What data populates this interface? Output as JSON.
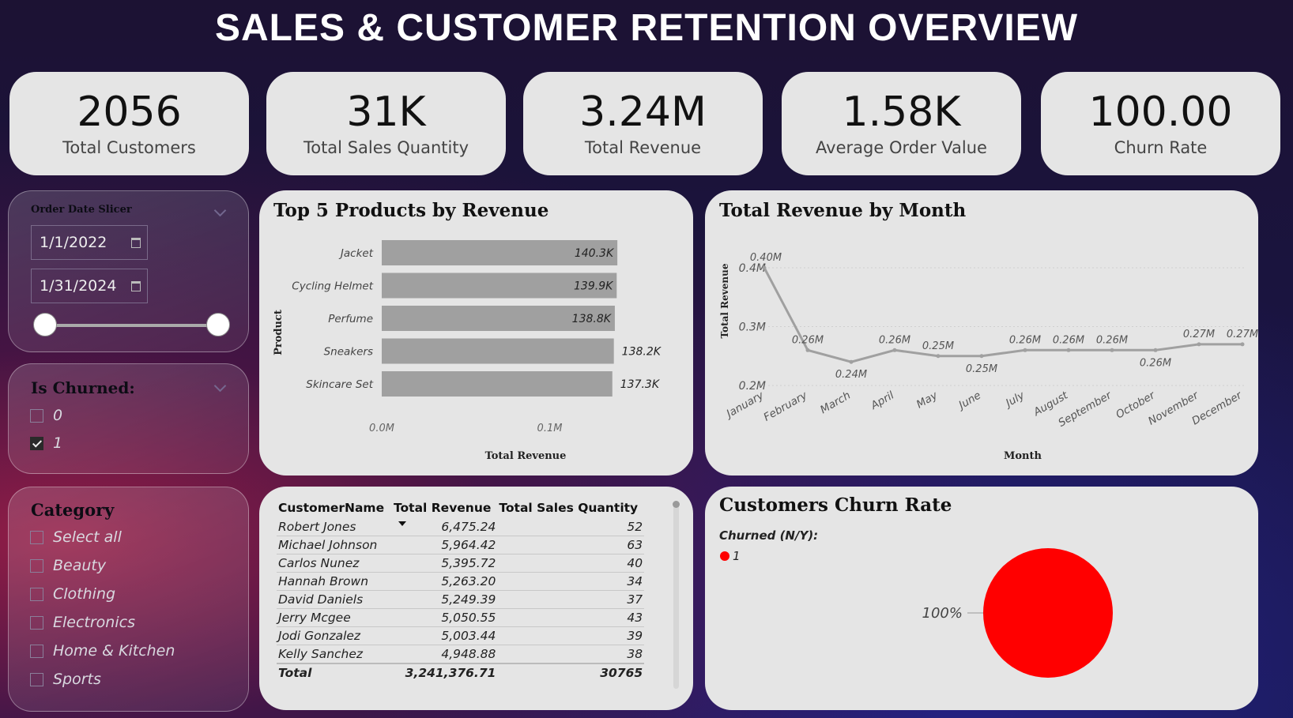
{
  "title": "SALES & CUSTOMER RETENTION OVERVIEW",
  "kpis": [
    {
      "value": "2056",
      "label": "Total Customers"
    },
    {
      "value": "31K",
      "label": "Total Sales Quantity"
    },
    {
      "value": "3.24M",
      "label": "Total Revenue"
    },
    {
      "value": "1.58K",
      "label": "Average Order Value"
    },
    {
      "value": "100.00",
      "label": "Churn Rate"
    }
  ],
  "date_slicer": {
    "title": "Order Date Slicer",
    "start": "1/1/2022",
    "end": "1/31/2024"
  },
  "churn_slicer": {
    "title": "Is Churned:",
    "options": [
      {
        "label": "0",
        "checked": false
      },
      {
        "label": "1",
        "checked": true
      }
    ]
  },
  "category_slicer": {
    "title": "Category",
    "options": [
      "Select all",
      "Beauty",
      "Clothing",
      "Electronics",
      "Home & Kitchen",
      "Sports"
    ]
  },
  "table": {
    "headers": [
      "CustomerName",
      "Total Revenue",
      "Total Sales Quantity"
    ],
    "rows": [
      [
        "Robert Jones",
        "6,475.24",
        "52"
      ],
      [
        "Michael Johnson",
        "5,964.42",
        "63"
      ],
      [
        "Carlos Nunez",
        "5,395.72",
        "40"
      ],
      [
        "Hannah Brown",
        "5,263.20",
        "34"
      ],
      [
        "David Daniels",
        "5,249.39",
        "37"
      ],
      [
        "Jerry Mcgee",
        "5,050.55",
        "43"
      ],
      [
        "Jodi Gonzalez",
        "5,003.44",
        "39"
      ],
      [
        "Kelly Sanchez",
        "4,948.88",
        "38"
      ]
    ],
    "total": [
      "Total",
      "3,241,376.71",
      "30765"
    ]
  },
  "colors": {
    "bar": "#a0a0a0",
    "line": "#a0a0a0",
    "pie": "#ff0000",
    "card": "#e5e5e5"
  },
  "chart_data": [
    {
      "type": "bar",
      "title": "Top 5 Products by Revenue",
      "xlabel": "Total Revenue",
      "ylabel": "Product",
      "categories": [
        "Jacket",
        "Cycling Helmet",
        "Perfume",
        "Sneakers",
        "Skincare Set"
      ],
      "values": [
        140300,
        139900,
        138800,
        138200,
        137300
      ],
      "data_labels": [
        "140.3K",
        "139.9K",
        "138.8K",
        "138.2K",
        "137.3K"
      ],
      "x_ticks": [
        "0.0M",
        "0.1M"
      ],
      "xlim": [
        0,
        0.14
      ]
    },
    {
      "type": "line",
      "title": "Total Revenue by Month",
      "xlabel": "Month",
      "ylabel": "Total Revenue",
      "categories": [
        "January",
        "February",
        "March",
        "April",
        "May",
        "June",
        "July",
        "August",
        "September",
        "October",
        "November",
        "December"
      ],
      "values": [
        0.4,
        0.26,
        0.24,
        0.26,
        0.25,
        0.25,
        0.26,
        0.26,
        0.26,
        0.26,
        0.27,
        0.27
      ],
      "data_labels": [
        "0.40M",
        "0.26M",
        "0.24M",
        "0.26M",
        "0.25M",
        "0.25M",
        "0.26M",
        "0.26M",
        "0.26M",
        "0.26M",
        "0.27M",
        "0.27M"
      ],
      "y_ticks": [
        "0.2M",
        "0.3M",
        "0.4M"
      ],
      "ylim": [
        0.2,
        0.4
      ],
      "grid": true
    },
    {
      "type": "pie",
      "title": "Customers Churn Rate",
      "legend_title": "Churned (N/Y):",
      "legend": [
        "1"
      ],
      "values": [
        100
      ],
      "data_labels": [
        "100%"
      ],
      "legend_position": "top-left"
    }
  ]
}
